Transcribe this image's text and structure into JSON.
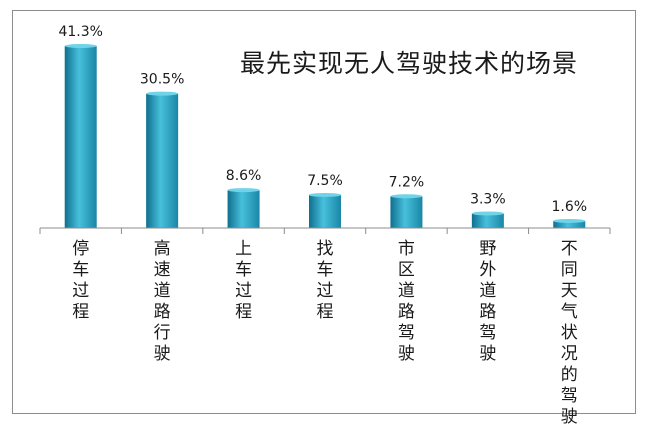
{
  "chart_data": {
    "type": "bar",
    "title": "最先实现无人驾驶技术的场景",
    "categories": [
      "停车过程",
      "高速道路行驶",
      "上车过程",
      "找车过程",
      "市区道路驾驶",
      "野外道路驾驶",
      "不同天气状况的驾驶"
    ],
    "values": [
      41.3,
      30.5,
      8.6,
      7.5,
      7.2,
      3.3,
      1.6
    ],
    "data_labels": [
      "41.3%",
      "30.5%",
      "8.6%",
      "7.5%",
      "7.2%",
      "3.3%",
      "1.6%"
    ],
    "unit": "%",
    "xlabel": "",
    "ylabel": "",
    "ylim": [
      0,
      41.3
    ],
    "grid": false,
    "legend": "none",
    "bar_color": "#2a9fbf"
  }
}
